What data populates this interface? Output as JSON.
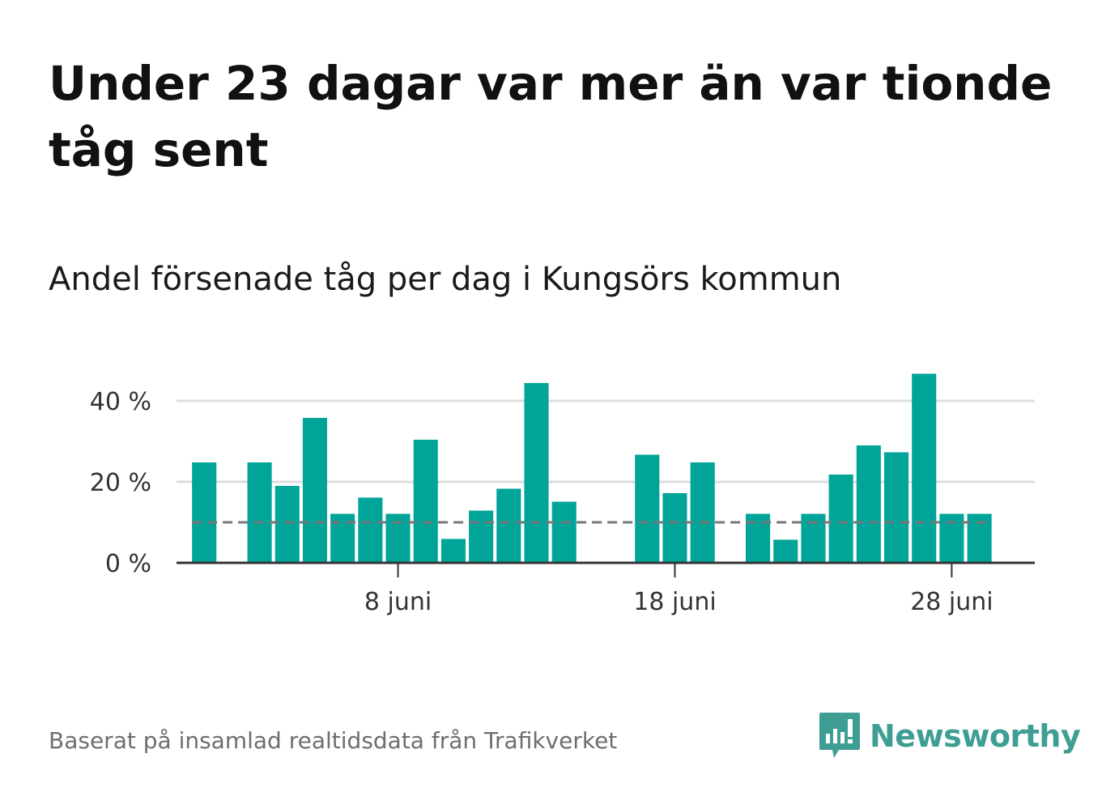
{
  "header": {
    "title": "Under 23 dagar var mer än var tionde tåg sent",
    "subtitle": "Andel försenade tåg per dag i Kungsörs kommun"
  },
  "footer": {
    "source": "Baserat på insamlad realtidsdata från Trafikverket",
    "brand": "Newsworthy"
  },
  "colors": {
    "bar": "#00a499",
    "reference_line": "#777777",
    "grid": "#dddddd",
    "axis": "#333333",
    "brand": "#3f9e94"
  },
  "chart_data": {
    "type": "bar",
    "x": [
      1,
      2,
      3,
      4,
      5,
      6,
      7,
      8,
      9,
      10,
      11,
      12,
      13,
      14,
      15,
      16,
      17,
      18,
      19,
      20,
      21,
      22,
      23,
      24,
      25,
      26,
      27,
      28,
      29,
      30
    ],
    "values": [
      24.8,
      0,
      24.8,
      19.0,
      35.8,
      12.1,
      16.1,
      12.1,
      30.4,
      5.9,
      12.9,
      18.3,
      44.4,
      15.1,
      0,
      0,
      26.7,
      17.2,
      24.8,
      0,
      12.1,
      5.7,
      12.1,
      21.8,
      29.0,
      27.3,
      46.7,
      12.1,
      12.1,
      null
    ],
    "x_unit": "dag i juni",
    "x_ticks": [
      {
        "x": 8,
        "label": "8 juni"
      },
      {
        "x": 18,
        "label": "18 juni"
      },
      {
        "x": 28,
        "label": "28 juni"
      }
    ],
    "y_ticks": [
      {
        "y": 0,
        "label": "0 %"
      },
      {
        "y": 20,
        "label": "20 %"
      },
      {
        "y": 40,
        "label": "40 %"
      }
    ],
    "ylim": [
      0,
      50
    ],
    "xlim": [
      0,
      31
    ],
    "reference_line": 10,
    "grid": true,
    "title": "Andel försenade tåg per dag i Kungsörs kommun",
    "xlabel": "",
    "ylabel": ""
  }
}
